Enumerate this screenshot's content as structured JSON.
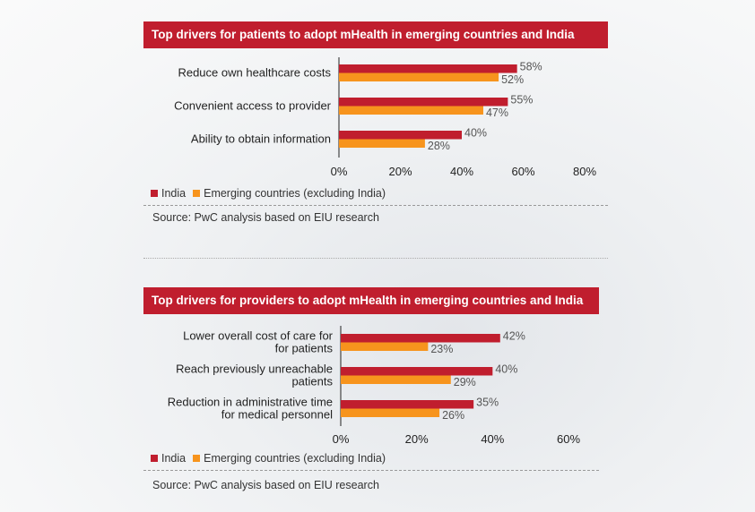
{
  "colors": {
    "india": "#c01e2e",
    "emerging": "#f7941d",
    "axis": "#222222"
  },
  "chart_data": [
    {
      "type": "bar",
      "orientation": "horizontal",
      "title": "Top drivers for patients to adopt mHealth in emerging countries and India",
      "categories": [
        "Reduce own healthcare costs",
        "Convenient access to provider",
        "Ability to obtain information"
      ],
      "series": [
        {
          "name": "India",
          "values": [
            58,
            55,
            40
          ]
        },
        {
          "name": "Emerging countries (excluding India)",
          "values": [
            52,
            47,
            28
          ]
        }
      ],
      "xlim": [
        0,
        80
      ],
      "ticks": [
        "0%",
        "20%",
        "40%",
        "60%",
        "80%"
      ],
      "legend": [
        "India",
        "Emerging countries (excluding India)"
      ],
      "source": "Source: PwC analysis based on EIU research"
    },
    {
      "type": "bar",
      "orientation": "horizontal",
      "title": "Top drivers for providers to adopt mHealth in emerging countries and India",
      "categories": [
        [
          "Lower overall cost of care for",
          "for patients"
        ],
        [
          "Reach previously unreachable",
          "patients"
        ],
        [
          "Reduction in administrative time",
          "for medical personnel"
        ]
      ],
      "series": [
        {
          "name": "India",
          "values": [
            42,
            40,
            35
          ]
        },
        {
          "name": "Emerging countries (excluding India)",
          "values": [
            23,
            29,
            26
          ]
        }
      ],
      "xlim": [
        0,
        60
      ],
      "ticks": [
        "0%",
        "20%",
        "40%",
        "60%"
      ],
      "legend": [
        "India",
        "Emerging countries (excluding India)"
      ],
      "source": "Source: PwC analysis based on EIU research"
    }
  ]
}
